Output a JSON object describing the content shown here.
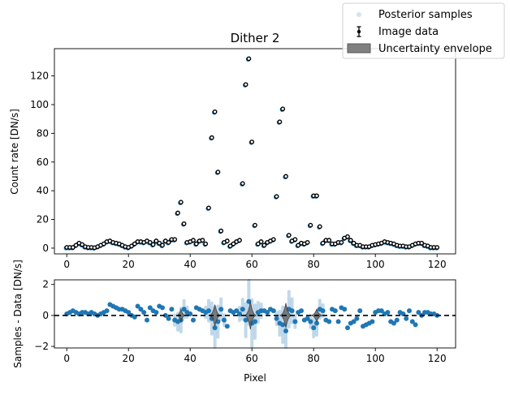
{
  "chart_data": [
    {
      "type": "scatter",
      "title": "Dither 2",
      "xlabel": "",
      "ylabel": "Count rate [DN/s]",
      "xlim": [
        -4,
        126
      ],
      "ylim": [
        -4,
        139
      ],
      "xticks": [
        0,
        20,
        40,
        60,
        80,
        100,
        120
      ],
      "yticks": [
        0,
        20,
        40,
        60,
        80,
        100,
        120
      ],
      "x": [
        0,
        1,
        2,
        3,
        4,
        5,
        6,
        7,
        8,
        9,
        10,
        11,
        12,
        13,
        14,
        15,
        16,
        17,
        18,
        19,
        20,
        21,
        22,
        23,
        24,
        25,
        26,
        27,
        28,
        29,
        30,
        31,
        32,
        33,
        34,
        35,
        36,
        37,
        38,
        39,
        40,
        41,
        42,
        43,
        44,
        45,
        46,
        47,
        48,
        49,
        50,
        51,
        52,
        53,
        54,
        55,
        56,
        57,
        58,
        59,
        60,
        61,
        62,
        63,
        64,
        65,
        66,
        67,
        68,
        69,
        70,
        71,
        72,
        73,
        74,
        75,
        76,
        77,
        78,
        79,
        80,
        81,
        82,
        83,
        84,
        85,
        86,
        87,
        88,
        89,
        90,
        91,
        92,
        93,
        94,
        95,
        96,
        97,
        98,
        99,
        100,
        101,
        102,
        103,
        104,
        105,
        106,
        107,
        108,
        109,
        110,
        111,
        112,
        113,
        114,
        115,
        116,
        117,
        118,
        119,
        120
      ],
      "series": [
        {
          "name": "Image data",
          "values": [
            0.5,
            0.5,
            0.5,
            2,
            3.5,
            2.5,
            1,
            0.5,
            0.5,
            0.3,
            1,
            2,
            3,
            4.5,
            5,
            4,
            3.5,
            3,
            2,
            1,
            0.5,
            1.5,
            3,
            4.5,
            4.5,
            4,
            5,
            4,
            2.5,
            5,
            3.5,
            2,
            5,
            4,
            6,
            6,
            24.5,
            32,
            17,
            4,
            4.5,
            5.5,
            3,
            5,
            5.5,
            3,
            28,
            77,
            95,
            53,
            12,
            4,
            5,
            1.5,
            3,
            4.5,
            5.5,
            45,
            114,
            132,
            74,
            16,
            3,
            4.5,
            2,
            4,
            5,
            6,
            36,
            88,
            97,
            50,
            9,
            5,
            6,
            2,
            3.5,
            3,
            4,
            16,
            36.5,
            36.5,
            15,
            3.5,
            5.5,
            5.5,
            3,
            3,
            4,
            4,
            7,
            8,
            5.5,
            3.5,
            2,
            2,
            1,
            1,
            1,
            2,
            2.5,
            3,
            3.5,
            4.5,
            4,
            3.5,
            3,
            2,
            1.5,
            1.5,
            1,
            1,
            2,
            3,
            3.5,
            3.5,
            2,
            1.5,
            0.5,
            0.5,
            0.5
          ]
        },
        {
          "name": "Posterior samples",
          "values": [
            0.5,
            0.5,
            0.5,
            2,
            3.5,
            2.5,
            1,
            0.5,
            0.5,
            0.3,
            1,
            2,
            3,
            4.5,
            5,
            4,
            3.5,
            3,
            2,
            1,
            0.5,
            1.5,
            3,
            4.5,
            4.5,
            4,
            5,
            4,
            2.5,
            5,
            3.5,
            2,
            5,
            4,
            6,
            6,
            24.5,
            32,
            17,
            4,
            4.5,
            5.5,
            3,
            5,
            5.5,
            3,
            28,
            77,
            95,
            53,
            12,
            4,
            5,
            1.5,
            3,
            4.5,
            5.5,
            45,
            114,
            132,
            74,
            16,
            3,
            4.5,
            2,
            4,
            5,
            6,
            36,
            88,
            97,
            50,
            9,
            5,
            6,
            2,
            3.5,
            3,
            4,
            16,
            36.5,
            36.5,
            15,
            3.5,
            5.5,
            5.5,
            3,
            3,
            4,
            4,
            7,
            8,
            5.5,
            3.5,
            2,
            2,
            1,
            1,
            1,
            2,
            2.5,
            3,
            3.5,
            4.5,
            4,
            3.5,
            3,
            2,
            1.5,
            1.5,
            1,
            1,
            2,
            3,
            3.5,
            3.5,
            2,
            1.5,
            0.5,
            0.5,
            0.5
          ]
        }
      ],
      "colors": {
        "samples": "#1f77b4",
        "data": "#000000",
        "envelope": "#808080"
      }
    },
    {
      "type": "scatter",
      "title": "",
      "xlabel": "Pixel",
      "ylabel": "Samples - Data [DN/s]",
      "xlim": [
        -4,
        126
      ],
      "ylim": [
        -2.1,
        2.3
      ],
      "xticks": [
        0,
        20,
        40,
        60,
        80,
        100,
        120
      ],
      "yticks": [
        -2,
        0,
        2
      ],
      "zero_line": {
        "y": 0,
        "style": "dashed",
        "color": "#000000"
      },
      "x": [
        0,
        1,
        2,
        3,
        4,
        5,
        6,
        7,
        8,
        9,
        10,
        11,
        12,
        13,
        14,
        15,
        16,
        17,
        18,
        19,
        20,
        21,
        22,
        23,
        24,
        25,
        26,
        27,
        28,
        29,
        30,
        31,
        32,
        33,
        34,
        35,
        36,
        37,
        38,
        39,
        40,
        41,
        42,
        43,
        44,
        45,
        46,
        47,
        48,
        49,
        50,
        51,
        52,
        53,
        54,
        55,
        56,
        57,
        58,
        59,
        60,
        61,
        62,
        63,
        64,
        65,
        66,
        67,
        68,
        69,
        70,
        71,
        72,
        73,
        74,
        75,
        76,
        77,
        78,
        79,
        80,
        81,
        82,
        83,
        84,
        85,
        86,
        87,
        88,
        89,
        90,
        91,
        92,
        93,
        94,
        95,
        96,
        97,
        98,
        99,
        100,
        101,
        102,
        103,
        104,
        105,
        106,
        107,
        108,
        109,
        110,
        111,
        112,
        113,
        114,
        115,
        116,
        117,
        118,
        119,
        120
      ],
      "series": [
        {
          "name": "Posterior samples",
          "values": [
            0.1,
            0.2,
            0.3,
            0.2,
            0.1,
            0.2,
            0.2,
            0.1,
            0.2,
            0.1,
            0.0,
            0.1,
            0.2,
            0.3,
            0.7,
            0.6,
            0.5,
            0.4,
            0.4,
            0.3,
            0.2,
            0.0,
            -0.1,
            0.6,
            0.4,
            0.2,
            -0.3,
            0.5,
            0.3,
            0.2,
            0.6,
            0.5,
            0.0,
            -0.2,
            0.4,
            -0.3,
            -0.4,
            -0.3,
            0.4,
            0.2,
            0.1,
            -0.3,
            0.5,
            0.4,
            0.3,
            0.2,
            0.3,
            -0.2,
            -0.8,
            -0.4,
            0.4,
            -0.3,
            -0.7,
            0.3,
            0.2,
            0.3,
            0.1,
            0.4,
            -0.3,
            0.9,
            -0.5,
            -0.4,
            0.2,
            0.3,
            0.3,
            0.2,
            0.4,
            0.3,
            -0.2,
            -0.5,
            -0.6,
            -1.0,
            0.4,
            0.3,
            -0.4,
            0.2,
            0.3,
            -0.3,
            -0.2,
            -0.4,
            -0.8,
            -0.5,
            0.4,
            0.3,
            -0.3,
            -0.4,
            0.4,
            0.3,
            -0.4,
            0.5,
            0.4,
            -0.8,
            -0.5,
            -0.4,
            -0.2,
            0.3,
            -0.7,
            -0.6,
            -0.5,
            -0.4,
            0.2,
            0.3,
            0.3,
            0.1,
            0.2,
            -0.4,
            -0.5,
            -0.3,
            0.2,
            0.1,
            -0.2,
            0.3,
            -0.4,
            -0.6,
            0.2,
            0.0,
            0.2,
            0.2,
            0.1,
            0.1,
            0.0
          ]
        }
      ],
      "envelope": {
        "name": "Uncertainty envelope",
        "peaks": [
          {
            "center": 37,
            "half_width": 1.5,
            "amplitude": 0.4
          },
          {
            "center": 48,
            "half_width": 2,
            "amplitude": 0.7
          },
          {
            "center": 59.5,
            "half_width": 2,
            "amplitude": 0.9
          },
          {
            "center": 71,
            "half_width": 2,
            "amplitude": 0.8
          },
          {
            "center": 81,
            "half_width": 2,
            "amplitude": 0.4
          }
        ]
      },
      "colors": {
        "samples": "#1f77b4",
        "envelope": "#5a5a5a"
      }
    }
  ],
  "legend": {
    "placement": "top-right",
    "entries": [
      "Posterior samples",
      "Image data",
      "Uncertainty envelope"
    ]
  }
}
